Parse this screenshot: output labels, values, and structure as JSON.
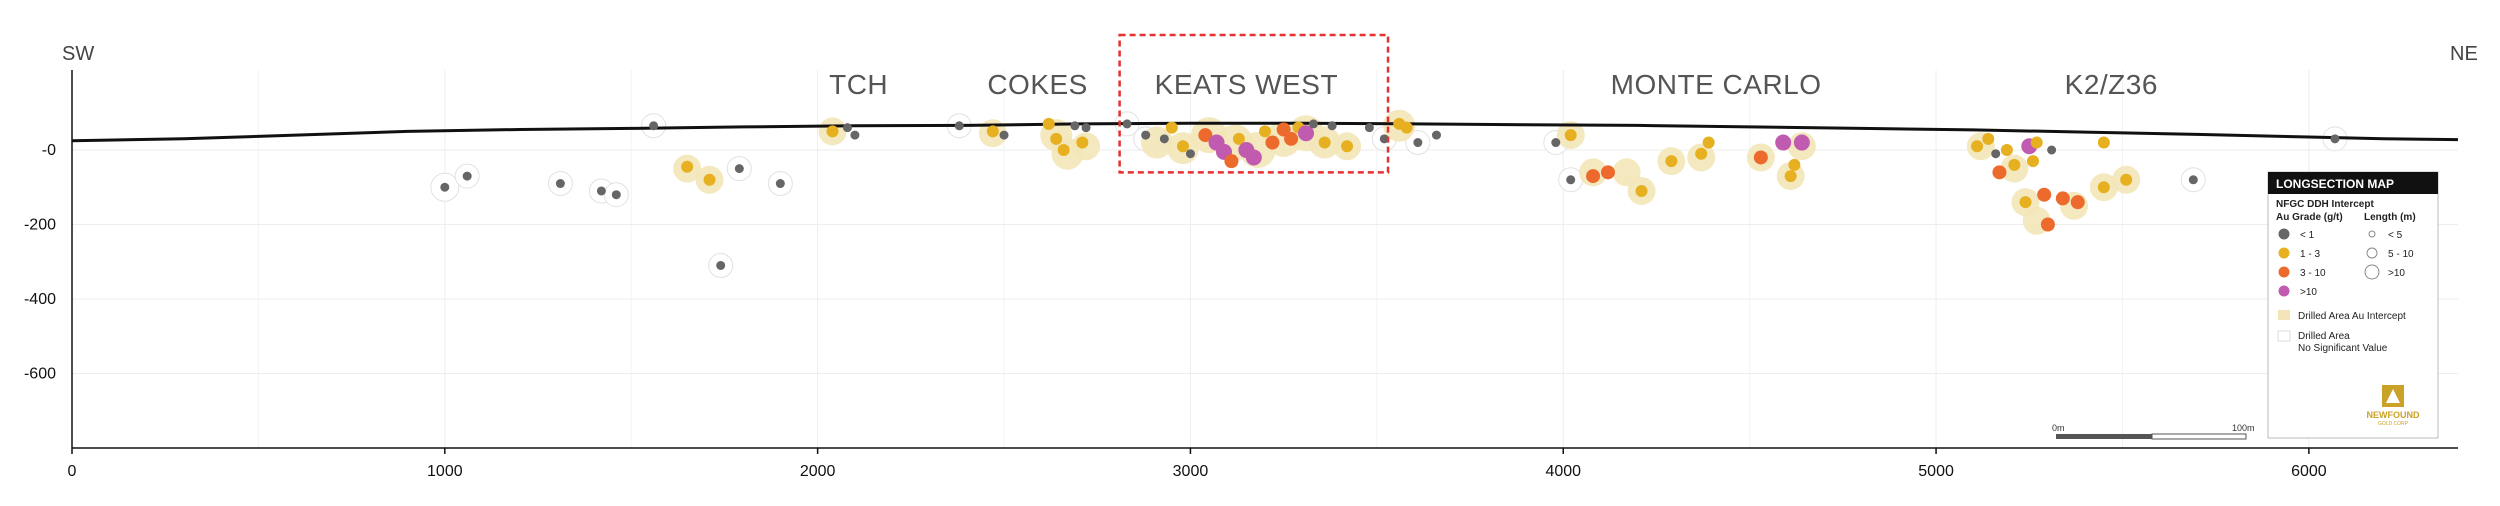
{
  "chart_data": {
    "type": "scatter",
    "title": "LONGSECTION MAP",
    "corner_left": "SW",
    "corner_right": "NE",
    "xlim": [
      0,
      6400
    ],
    "ylim": [
      -800,
      0
    ],
    "x_ticks": [
      0,
      1000,
      2000,
      3000,
      4000,
      5000,
      6000
    ],
    "x_tick_labels": [
      "0",
      "1000",
      "2000",
      "3000",
      "4000",
      "5000",
      "6000"
    ],
    "y_ticks": [
      0,
      -200,
      -400,
      -600
    ],
    "y_tick_labels": [
      "-0",
      "-200",
      "-400",
      "-600"
    ],
    "grid": true,
    "zones": [
      {
        "name": "TCH",
        "x": 2110
      },
      {
        "name": "COKES",
        "x": 2590
      },
      {
        "name": "KEATS WEST",
        "x": 3150
      },
      {
        "name": "MONTE CARLO",
        "x": 4410
      },
      {
        "name": "K2/Z36",
        "x": 5470
      }
    ],
    "highlight_box": {
      "x0": 2810,
      "x1": 3530,
      "y0": 0,
      "y1": -60
    },
    "topography": [
      [
        0,
        25
      ],
      [
        300,
        30
      ],
      [
        600,
        40
      ],
      [
        900,
        50
      ],
      [
        1200,
        55
      ],
      [
        1500,
        58
      ],
      [
        1800,
        62
      ],
      [
        2100,
        65
      ],
      [
        2400,
        66
      ],
      [
        2700,
        70
      ],
      [
        3000,
        72
      ],
      [
        3300,
        72
      ],
      [
        3600,
        70
      ],
      [
        3900,
        68
      ],
      [
        4200,
        66
      ],
      [
        4500,
        62
      ],
      [
        4800,
        58
      ],
      [
        5100,
        54
      ],
      [
        5400,
        48
      ],
      [
        5700,
        42
      ],
      [
        6000,
        35
      ],
      [
        6200,
        30
      ],
      [
        6400,
        28
      ]
    ],
    "drilled_area_au_intercept": [
      [
        2040,
        50,
        14
      ],
      [
        2470,
        45,
        14
      ],
      [
        2640,
        40,
        16
      ],
      [
        2670,
        -10,
        16
      ],
      [
        2720,
        10,
        14
      ],
      [
        2910,
        20,
        16
      ],
      [
        2980,
        5,
        16
      ],
      [
        3050,
        40,
        18
      ],
      [
        3120,
        20,
        18
      ],
      [
        3180,
        0,
        18
      ],
      [
        3250,
        30,
        18
      ],
      [
        3310,
        45,
        18
      ],
      [
        3360,
        20,
        16
      ],
      [
        3420,
        10,
        14
      ],
      [
        3560,
        65,
        16
      ],
      [
        4020,
        40,
        14
      ],
      [
        4080,
        -60,
        14
      ],
      [
        4170,
        -60,
        14
      ],
      [
        4210,
        -110,
        14
      ],
      [
        4290,
        -30,
        14
      ],
      [
        4370,
        -20,
        14
      ],
      [
        4530,
        -20,
        14
      ],
      [
        4610,
        -70,
        14
      ],
      [
        4640,
        10,
        14
      ],
      [
        5120,
        10,
        14
      ],
      [
        5210,
        -50,
        14
      ],
      [
        5240,
        -140,
        14
      ],
      [
        5270,
        -190,
        14
      ],
      [
        5370,
        -150,
        14
      ],
      [
        5450,
        -100,
        14
      ],
      [
        5510,
        -80,
        14
      ],
      [
        1650,
        -50,
        14
      ],
      [
        1710,
        -80,
        14
      ]
    ],
    "drilled_area_no_significant": [
      [
        1000,
        -100,
        14
      ],
      [
        1060,
        -70,
        12
      ],
      [
        1310,
        -90,
        12
      ],
      [
        1420,
        -110,
        12
      ],
      [
        1460,
        -120,
        12
      ],
      [
        1560,
        65,
        12
      ],
      [
        1790,
        -50,
        12
      ],
      [
        1900,
        -90,
        12
      ],
      [
        1740,
        -310,
        12
      ],
      [
        2380,
        65,
        12
      ],
      [
        2830,
        70,
        12
      ],
      [
        2880,
        30,
        12
      ],
      [
        3520,
        30,
        12
      ],
      [
        3610,
        20,
        12
      ],
      [
        3980,
        20,
        12
      ],
      [
        4020,
        -80,
        12
      ],
      [
        5690,
        -80,
        12
      ],
      [
        6070,
        30,
        12
      ]
    ],
    "intercepts": [
      {
        "x": 1000,
        "y": -100,
        "grade": "<1"
      },
      {
        "x": 1060,
        "y": -70,
        "grade": "<1"
      },
      {
        "x": 1310,
        "y": -90,
        "grade": "<1"
      },
      {
        "x": 1420,
        "y": -110,
        "grade": "<1"
      },
      {
        "x": 1460,
        "y": -120,
        "grade": "<1"
      },
      {
        "x": 1560,
        "y": 65,
        "grade": "<1"
      },
      {
        "x": 1650,
        "y": -45,
        "grade": "1-3"
      },
      {
        "x": 1710,
        "y": -80,
        "grade": "1-3"
      },
      {
        "x": 1790,
        "y": -50,
        "grade": "<1"
      },
      {
        "x": 1900,
        "y": -90,
        "grade": "<1"
      },
      {
        "x": 1740,
        "y": -310,
        "grade": "<1"
      },
      {
        "x": 2040,
        "y": 50,
        "grade": "1-3"
      },
      {
        "x": 2080,
        "y": 60,
        "grade": "<1"
      },
      {
        "x": 2100,
        "y": 40,
        "grade": "<1"
      },
      {
        "x": 2380,
        "y": 65,
        "grade": "<1"
      },
      {
        "x": 2470,
        "y": 50,
        "grade": "1-3"
      },
      {
        "x": 2500,
        "y": 40,
        "grade": "<1"
      },
      {
        "x": 2620,
        "y": 70,
        "grade": "1-3"
      },
      {
        "x": 2640,
        "y": 30,
        "grade": "1-3"
      },
      {
        "x": 2660,
        "y": 0,
        "grade": "1-3"
      },
      {
        "x": 2690,
        "y": 65,
        "grade": "<1"
      },
      {
        "x": 2710,
        "y": 20,
        "grade": "1-3"
      },
      {
        "x": 2720,
        "y": 60,
        "grade": "<1"
      },
      {
        "x": 2830,
        "y": 70,
        "grade": "<1"
      },
      {
        "x": 2880,
        "y": 40,
        "grade": "<1"
      },
      {
        "x": 2930,
        "y": 30,
        "grade": "<1"
      },
      {
        "x": 2950,
        "y": 60,
        "grade": "1-3"
      },
      {
        "x": 2980,
        "y": 10,
        "grade": "1-3"
      },
      {
        "x": 3000,
        "y": -10,
        "grade": "<1"
      },
      {
        "x": 3040,
        "y": 40,
        "grade": "3-10"
      },
      {
        "x": 3070,
        "y": 20,
        "grade": ">10"
      },
      {
        "x": 3090,
        "y": -5,
        "grade": ">10"
      },
      {
        "x": 3110,
        "y": -30,
        "grade": "3-10"
      },
      {
        "x": 3130,
        "y": 30,
        "grade": "1-3"
      },
      {
        "x": 3150,
        "y": 0,
        "grade": ">10"
      },
      {
        "x": 3170,
        "y": -20,
        "grade": ">10"
      },
      {
        "x": 3200,
        "y": 50,
        "grade": "1-3"
      },
      {
        "x": 3220,
        "y": 20,
        "grade": "3-10"
      },
      {
        "x": 3250,
        "y": 55,
        "grade": "3-10"
      },
      {
        "x": 3270,
        "y": 30,
        "grade": "3-10"
      },
      {
        "x": 3290,
        "y": 60,
        "grade": "1-3"
      },
      {
        "x": 3310,
        "y": 45,
        "grade": ">10"
      },
      {
        "x": 3330,
        "y": 70,
        "grade": "<1"
      },
      {
        "x": 3360,
        "y": 20,
        "grade": "1-3"
      },
      {
        "x": 3380,
        "y": 65,
        "grade": "<1"
      },
      {
        "x": 3420,
        "y": 10,
        "grade": "1-3"
      },
      {
        "x": 3480,
        "y": 60,
        "grade": "<1"
      },
      {
        "x": 3520,
        "y": 30,
        "grade": "<1"
      },
      {
        "x": 3560,
        "y": 70,
        "grade": "1-3"
      },
      {
        "x": 3580,
        "y": 60,
        "grade": "1-3"
      },
      {
        "x": 3610,
        "y": 20,
        "grade": "<1"
      },
      {
        "x": 3660,
        "y": 40,
        "grade": "<1"
      },
      {
        "x": 3980,
        "y": 20,
        "grade": "<1"
      },
      {
        "x": 4020,
        "y": 40,
        "grade": "1-3"
      },
      {
        "x": 4020,
        "y": -80,
        "grade": "<1"
      },
      {
        "x": 4080,
        "y": -70,
        "grade": "3-10"
      },
      {
        "x": 4120,
        "y": -60,
        "grade": "3-10"
      },
      {
        "x": 4210,
        "y": -110,
        "grade": "1-3"
      },
      {
        "x": 4290,
        "y": -30,
        "grade": "1-3"
      },
      {
        "x": 4370,
        "y": -10,
        "grade": "1-3"
      },
      {
        "x": 4390,
        "y": 20,
        "grade": "1-3"
      },
      {
        "x": 4530,
        "y": -20,
        "grade": "3-10"
      },
      {
        "x": 4590,
        "y": 20,
        "grade": ">10"
      },
      {
        "x": 4610,
        "y": -70,
        "grade": "1-3"
      },
      {
        "x": 4640,
        "y": 20,
        "grade": ">10"
      },
      {
        "x": 4620,
        "y": -40,
        "grade": "1-3"
      },
      {
        "x": 5110,
        "y": 10,
        "grade": "1-3"
      },
      {
        "x": 5140,
        "y": 30,
        "grade": "1-3"
      },
      {
        "x": 5160,
        "y": -10,
        "grade": "<1"
      },
      {
        "x": 5170,
        "y": -60,
        "grade": "3-10"
      },
      {
        "x": 5190,
        "y": 0,
        "grade": "1-3"
      },
      {
        "x": 5210,
        "y": -40,
        "grade": "1-3"
      },
      {
        "x": 5240,
        "y": -140,
        "grade": "1-3"
      },
      {
        "x": 5250,
        "y": 10,
        "grade": ">10"
      },
      {
        "x": 5260,
        "y": -30,
        "grade": "1-3"
      },
      {
        "x": 5270,
        "y": 20,
        "grade": "1-3"
      },
      {
        "x": 5290,
        "y": -120,
        "grade": "3-10"
      },
      {
        "x": 5300,
        "y": -200,
        "grade": "3-10"
      },
      {
        "x": 5310,
        "y": 0,
        "grade": "<1"
      },
      {
        "x": 5340,
        "y": -130,
        "grade": "3-10"
      },
      {
        "x": 5380,
        "y": -140,
        "grade": "3-10"
      },
      {
        "x": 5450,
        "y": 20,
        "grade": "1-3"
      },
      {
        "x": 5450,
        "y": -100,
        "grade": "1-3"
      },
      {
        "x": 5510,
        "y": -80,
        "grade": "1-3"
      },
      {
        "x": 5690,
        "y": -80,
        "grade": "<1"
      },
      {
        "x": 6070,
        "y": 30,
        "grade": "<1"
      }
    ],
    "colors": {
      "<1": "#666666",
      "1-3": "#e6b021",
      "3-10": "#ec6a2b",
      ">10": "#c05bb0",
      "drilled_area": "#f3e5b8",
      "highlight_box": "#e53030",
      "topography": "#111111",
      "legend_header": "#111111",
      "logo": "#c9a227"
    }
  },
  "legend": {
    "title": "LONGSECTION MAP",
    "subtitle": "NFGC DDH Intercept",
    "grade_header": "Au Grade (g/t)",
    "length_header": "Length (m)",
    "grades": [
      {
        "label": "< 1",
        "key": "<1"
      },
      {
        "label": "1 - 3",
        "key": "1-3"
      },
      {
        "label": "3 - 10",
        "key": "3-10"
      },
      {
        "label": ">10",
        "key": ">10"
      }
    ],
    "lengths": [
      "< 5",
      "5 - 10",
      ">10"
    ],
    "drilled_au": "Drilled Area Au Intercept",
    "drilled_none_line1": "Drilled Area",
    "drilled_none_line2": "No Significant Value"
  },
  "scale_bar": {
    "start_label": "0m",
    "end_label": "100m"
  },
  "logo": {
    "name": "NEWFOUND",
    "sub": "GOLD CORP"
  }
}
